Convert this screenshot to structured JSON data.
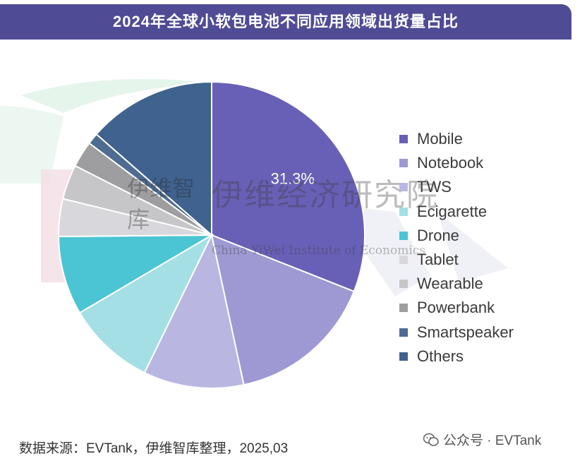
{
  "title": "2024年全球小软包电池不同应用领域出货量占比",
  "watermark": {
    "cn": "伊维经济研究院",
    "en": "China YiWei Institute of Economics",
    "box": "伊维智库"
  },
  "chart_data": {
    "type": "pie",
    "title": "2024年全球小软包电池不同应用领域出货量占比",
    "categories": [
      "Mobile",
      "Notebook",
      "TWS",
      "Ecigarette",
      "Drone",
      "Tablet",
      "Wearable",
      "Powerbank",
      "Smartspeaker",
      "Others"
    ],
    "values": [
      31.3,
      15.8,
      10.7,
      9.4,
      8.4,
      4.0,
      3.7,
      2.8,
      1.2,
      13.7
    ],
    "colors": [
      "#6860b6",
      "#9e99d3",
      "#b9b6e2",
      "#a5dfe6",
      "#4bc4d4",
      "#d8d8dc",
      "#c6c6c9",
      "#9e9ea1",
      "#4e6c92",
      "#3f628e"
    ],
    "data_labels": [
      {
        "category": "Mobile",
        "text": "31.3%"
      }
    ],
    "legend_position": "right"
  },
  "source_text": "数据来源：EVTank，伊维智库整理，2025,03",
  "wechat": {
    "label": "公众号 · EVTank",
    "icon": "wechat-icon"
  }
}
